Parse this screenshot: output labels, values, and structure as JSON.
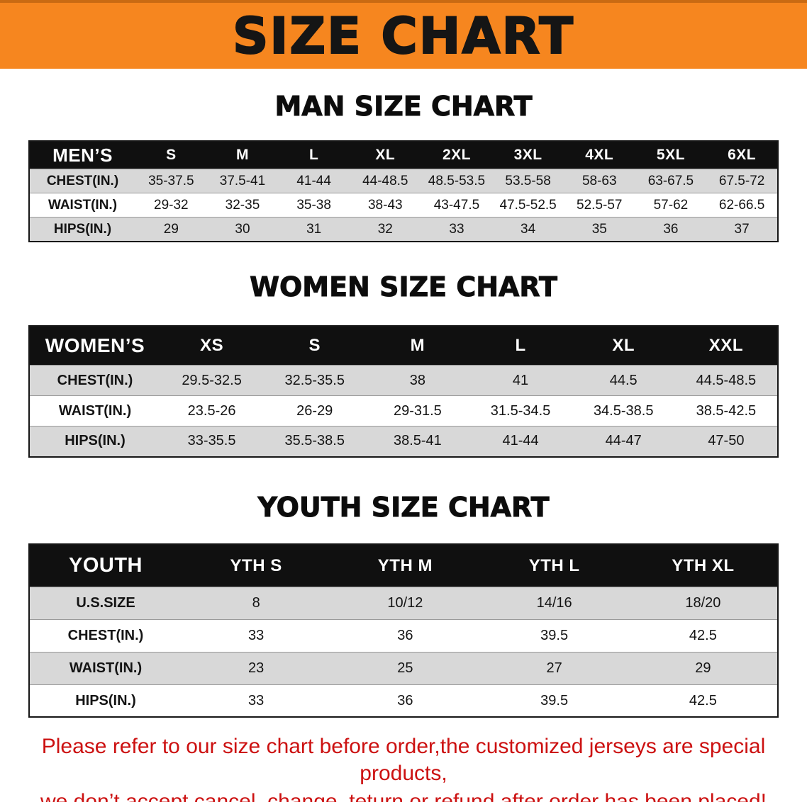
{
  "banner": {
    "title": "SIZE CHART"
  },
  "sections": [
    {
      "id": "men",
      "heading": "MAN SIZE CHART",
      "table": {
        "header": [
          "MEN’S",
          "S",
          "M",
          "L",
          "XL",
          "2XL",
          "3XL",
          "4XL",
          "5XL",
          "6XL"
        ],
        "rows": [
          {
            "label": "CHEST(IN.)",
            "values": [
              "35-37.5",
              "37.5-41",
              "41-44",
              "44-48.5",
              "48.5-53.5",
              "53.5-58",
              "58-63",
              "63-67.5",
              "67.5-72"
            ]
          },
          {
            "label": "WAIST(IN.)",
            "values": [
              "29-32",
              "32-35",
              "35-38",
              "38-43",
              "43-47.5",
              "47.5-52.5",
              "52.5-57",
              "57-62",
              "62-66.5"
            ]
          },
          {
            "label": "HIPS(IN.)",
            "values": [
              "29",
              "30",
              "31",
              "32",
              "33",
              "34",
              "35",
              "36",
              "37"
            ]
          }
        ]
      }
    },
    {
      "id": "women",
      "heading": "WOMEN SIZE CHART",
      "table": {
        "header": [
          "WOMEN’S",
          "XS",
          "S",
          "M",
          "L",
          "XL",
          "XXL"
        ],
        "rows": [
          {
            "label": "CHEST(IN.)",
            "values": [
              "29.5-32.5",
              "32.5-35.5",
              "38",
              "41",
              "44.5",
              "44.5-48.5"
            ]
          },
          {
            "label": "WAIST(IN.)",
            "values": [
              "23.5-26",
              "26-29",
              "29-31.5",
              "31.5-34.5",
              "34.5-38.5",
              "38.5-42.5"
            ]
          },
          {
            "label": "HIPS(IN.)",
            "values": [
              "33-35.5",
              "35.5-38.5",
              "38.5-41",
              "41-44",
              "44-47",
              "47-50"
            ]
          }
        ]
      }
    },
    {
      "id": "youth",
      "heading": "YOUTH SIZE CHART",
      "table": {
        "header": [
          "YOUTH",
          "YTH S",
          "YTH M",
          "YTH L",
          "YTH XL"
        ],
        "rows": [
          {
            "label": "U.S.SIZE",
            "values": [
              "8",
              "10/12",
              "14/16",
              "18/20"
            ]
          },
          {
            "label": "CHEST(IN.)",
            "values": [
              "33",
              "36",
              "39.5",
              "42.5"
            ]
          },
          {
            "label": "WAIST(IN.)",
            "values": [
              "23",
              "25",
              "27",
              "29"
            ]
          },
          {
            "label": "HIPS(IN.)",
            "values": [
              "33",
              "36",
              "39.5",
              "42.5"
            ]
          }
        ]
      }
    }
  ],
  "disclaimer": {
    "lines": [
      "Please refer to our size chart before order,the customized jerseys are special products,",
      "we don’t accept cancel, change, teturn or refund after order has been placed!"
    ]
  },
  "colors": {
    "banner_bg": "#f6861f",
    "header_bg": "#101010",
    "row_alt": "#d8d8d8",
    "disclaimer_text": "#cc1111"
  }
}
